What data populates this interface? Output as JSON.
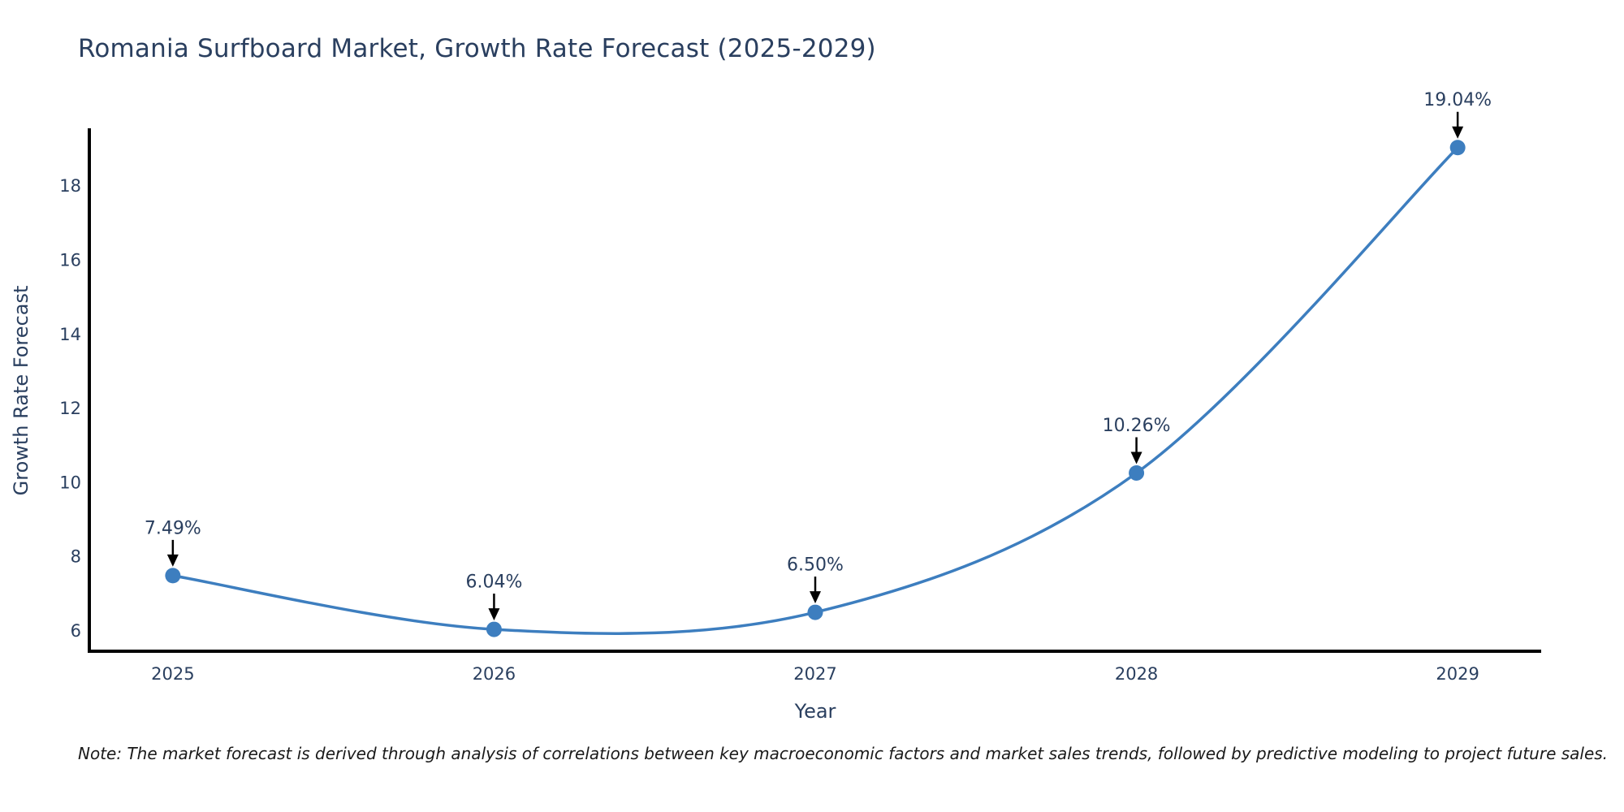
{
  "page": {
    "background_color": "#ffffff"
  },
  "chart_data": {
    "type": "line",
    "curve": "spline",
    "title": "Romania Surfboard Market, Growth Rate Forecast (2025-2029)",
    "xlabel": "Year",
    "ylabel": "Growth Rate Forecast",
    "x": [
      2025,
      2026,
      2027,
      2028,
      2029
    ],
    "x_tick_labels": [
      "2025",
      "2026",
      "2027",
      "2028",
      "2029"
    ],
    "series": [
      {
        "name": "Growth Rate Forecast",
        "values": [
          7.49,
          6.04,
          6.5,
          10.26,
          19.04
        ]
      }
    ],
    "point_labels": [
      "7.49%",
      "6.04%",
      "6.50%",
      "10.26%",
      "19.04%"
    ],
    "y_ticks": [
      6,
      8,
      10,
      12,
      14,
      16,
      18
    ],
    "xlim": [
      2024.74,
      2029.26
    ],
    "ylim": [
      5.45,
      19.56
    ],
    "grid": false,
    "legend": "none",
    "line_color": "#3d7ebf",
    "marker_color": "#3d7ebf",
    "axis_line_color": "#000000",
    "annotation_arrow_color": "#000000",
    "text_color": "#2a3f5f"
  },
  "note": {
    "text": "Note: The market forecast is derived through analysis of correlations between key macroeconomic factors and market sales trends, followed by predictive modeling to project future sales."
  }
}
